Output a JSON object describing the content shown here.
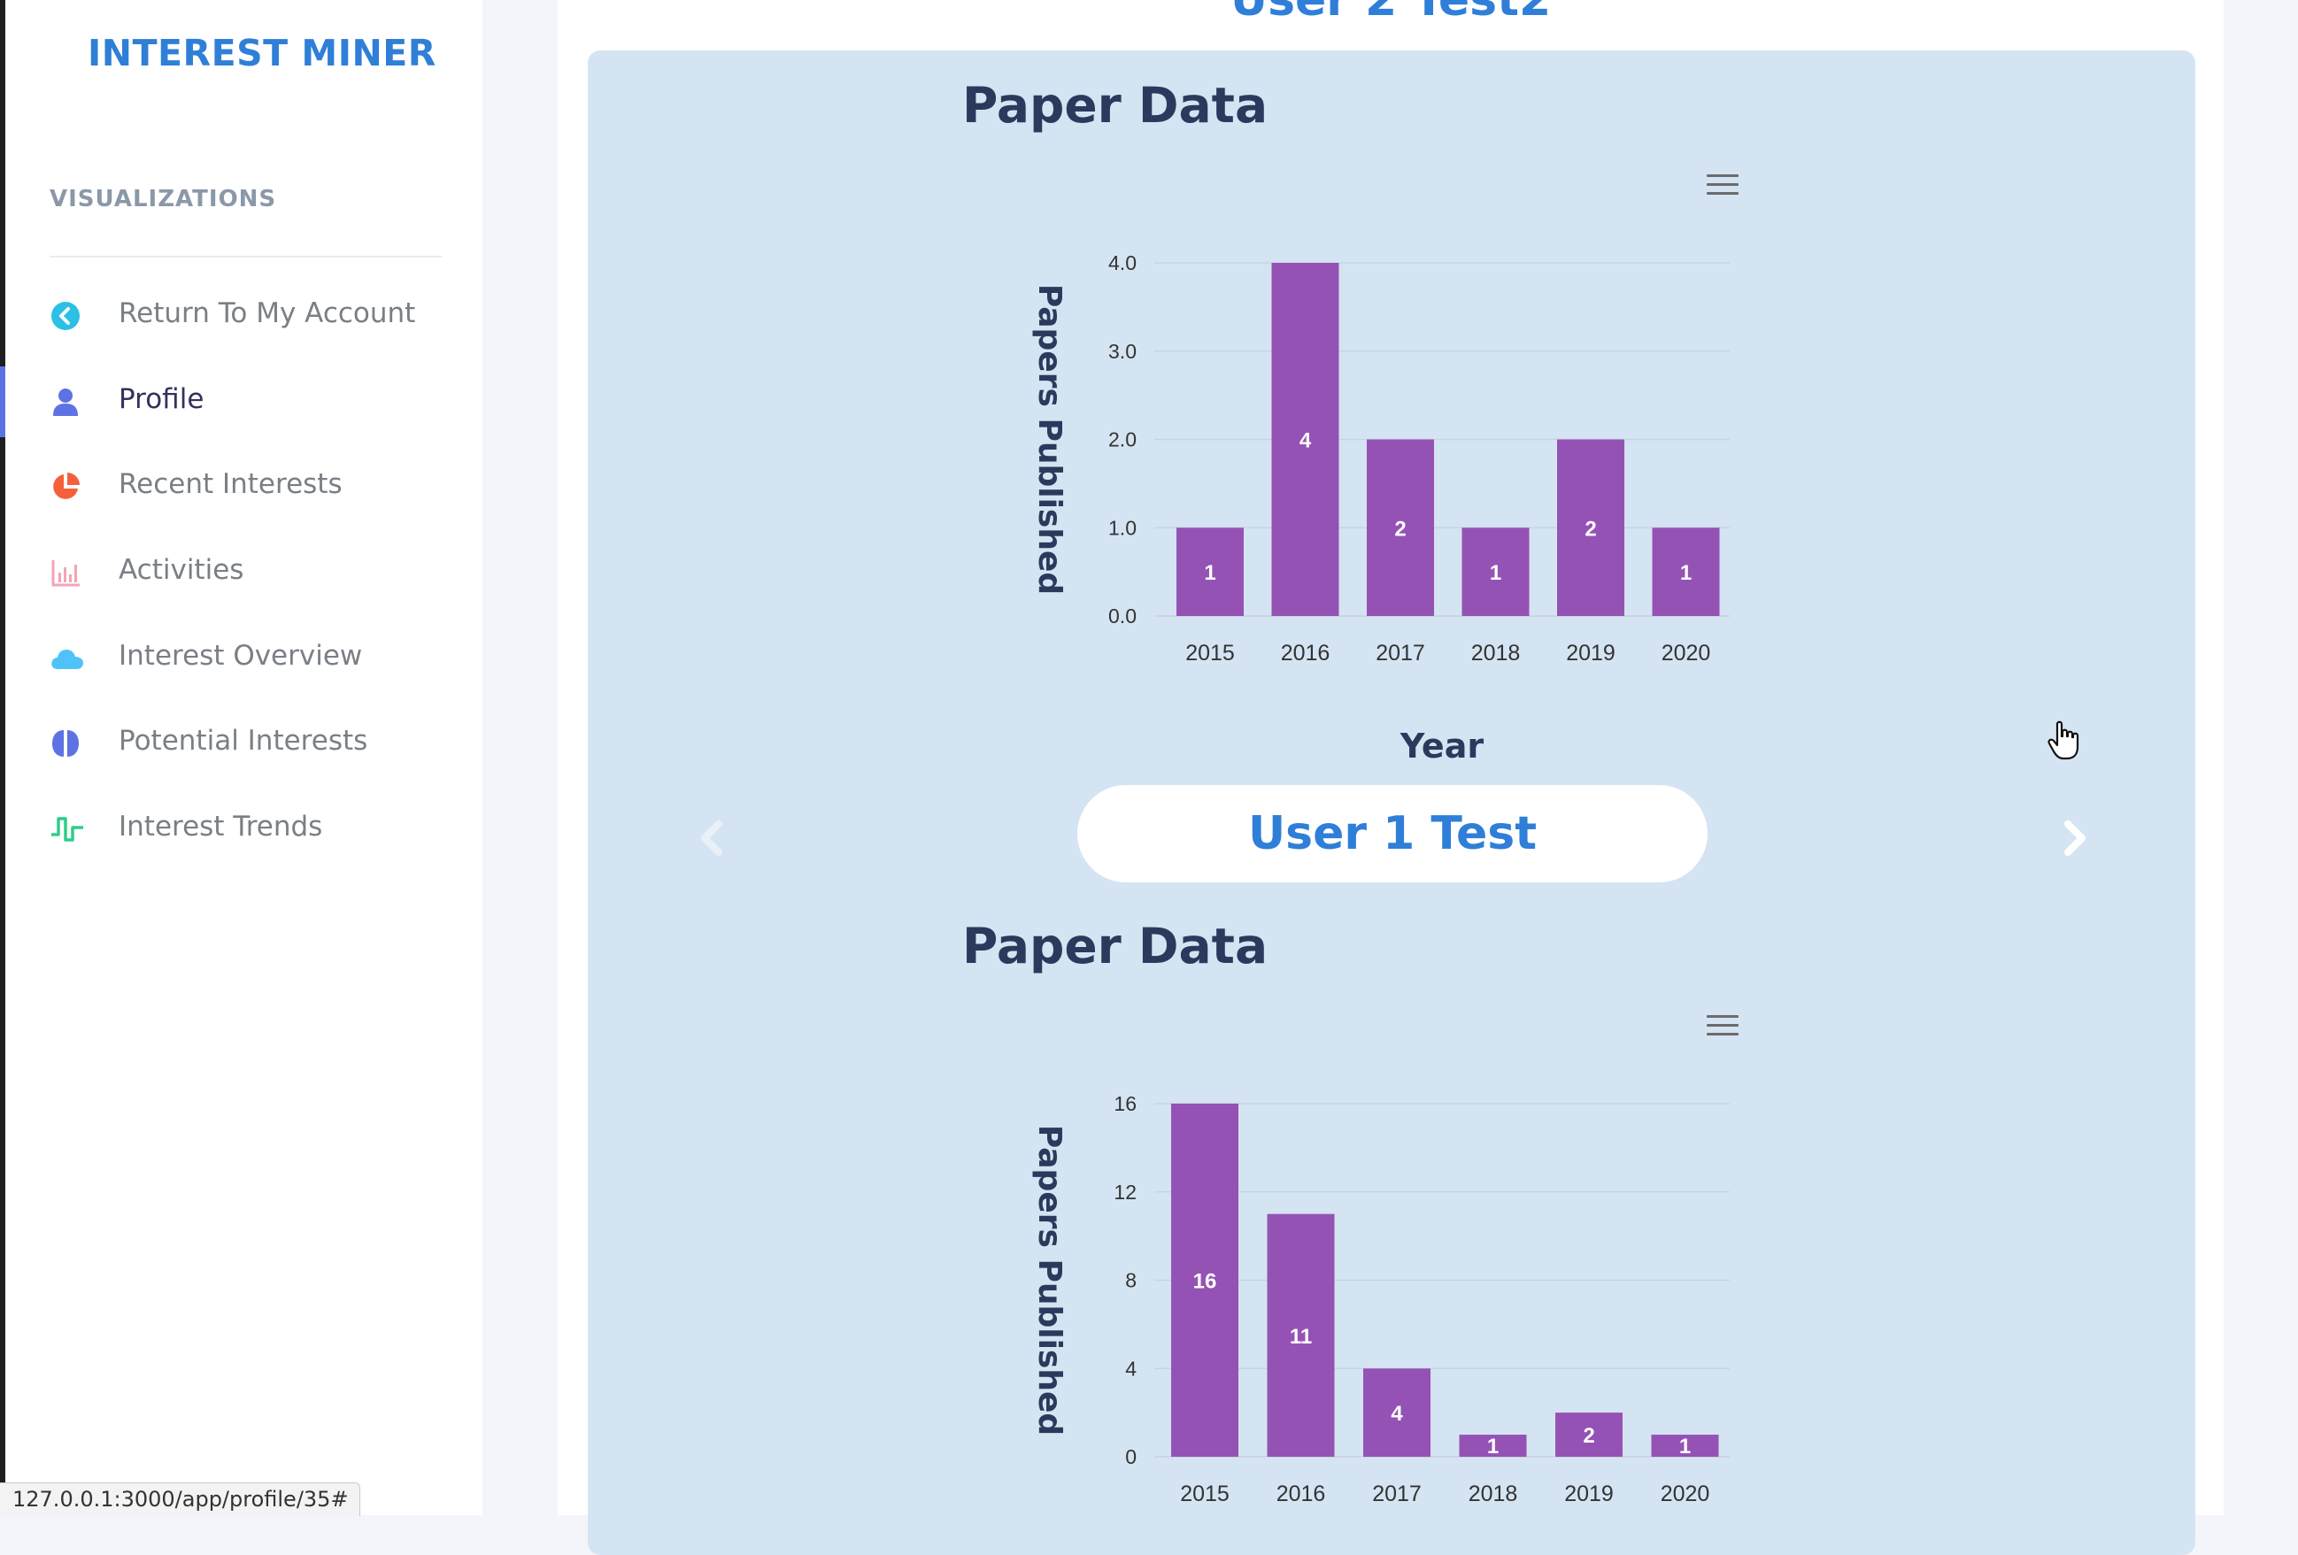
{
  "app": {
    "brand": "INTEREST MINER"
  },
  "sidebar": {
    "section_title": "VISUALIZATIONS",
    "items": [
      {
        "label": "Return To My Account",
        "icon": "chevron-left-circle-icon",
        "color": "#2bc0e4",
        "active": false
      },
      {
        "label": "Profile",
        "icon": "user-icon",
        "color": "#5e72e4",
        "active": true
      },
      {
        "label": "Recent Interests",
        "icon": "pie-chart-icon",
        "color": "#f5603a",
        "active": false
      },
      {
        "label": "Activities",
        "icon": "bar-chart-icon",
        "color": "#f3a4b5",
        "active": false
      },
      {
        "label": "Interest Overview",
        "icon": "cloud-icon",
        "color": "#4fc3f7",
        "active": false
      },
      {
        "label": "Potential Interests",
        "icon": "brain-icon",
        "color": "#5e72e4",
        "active": false
      },
      {
        "label": "Interest Trends",
        "icon": "pulse-icon",
        "color": "#2dce89",
        "active": false
      }
    ]
  },
  "main": {
    "previous_user_name": "User 2 Test2",
    "current_user_name": "User 1 Test"
  },
  "chart_data": [
    {
      "type": "bar",
      "title": "Paper Data",
      "categories": [
        "2015",
        "2016",
        "2017",
        "2018",
        "2019",
        "2020"
      ],
      "values": [
        1,
        4,
        2,
        1,
        2,
        1
      ],
      "xlabel": "Year",
      "ylabel": "Papers Published",
      "ylim": [
        0,
        4
      ],
      "yticks": [
        "0.0",
        "1.0",
        "2.0",
        "3.0",
        "4.0"
      ],
      "color": "#9552b5",
      "grid": true
    },
    {
      "type": "bar",
      "title": "Paper Data",
      "categories": [
        "2015",
        "2016",
        "2017",
        "2018",
        "2019",
        "2020"
      ],
      "values": [
        16,
        11,
        4,
        1,
        2,
        1
      ],
      "xlabel": "",
      "ylabel": "Papers Published",
      "ylim": [
        0,
        16
      ],
      "yticks": [
        "0",
        "4",
        "8",
        "12",
        "16"
      ],
      "color": "#9552b5",
      "grid": true
    }
  ],
  "status_bar": {
    "url": "127.0.0.1:3000/app/profile/35#"
  }
}
